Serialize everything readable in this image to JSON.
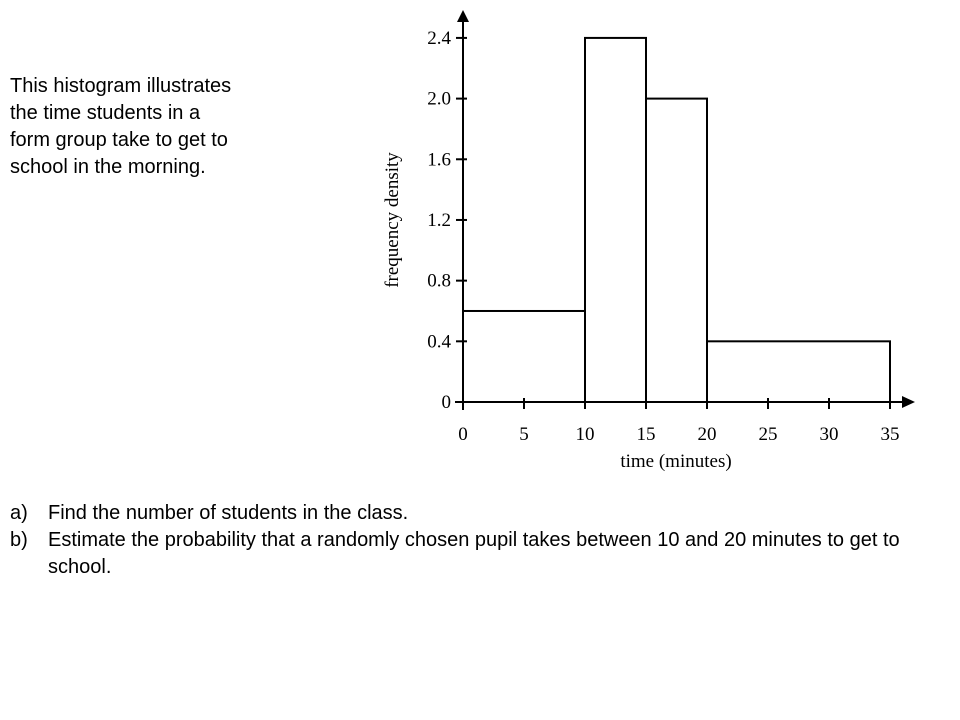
{
  "intro_lines": [
    "This histogram illustrates",
    "the time students in a",
    "form group take to get to",
    "school in the morning."
  ],
  "questions": [
    {
      "marker": "a)",
      "text": "Find the number of students in the class."
    },
    {
      "marker": "b)",
      "text": "Estimate the probability that a randomly chosen pupil takes between 10 and 20 minutes to get to school."
    }
  ],
  "chart_data": {
    "type": "bar",
    "histogram": true,
    "title": "",
    "xlabel": "time (minutes)",
    "ylabel": "frequency density",
    "xlim": [
      0,
      35
    ],
    "ylim": [
      0,
      2.4
    ],
    "x_ticks": [
      "0",
      "5",
      "10",
      "15",
      "20",
      "25",
      "30",
      "35"
    ],
    "x_tick_values": [
      0,
      5,
      10,
      15,
      20,
      25,
      30,
      35
    ],
    "y_ticks": [
      "0",
      "0.4",
      "0.8",
      "1.2",
      "1.6",
      "2.0",
      "2.4"
    ],
    "y_tick_values": [
      0,
      0.4,
      0.8,
      1.2,
      1.6,
      2.0,
      2.4
    ],
    "bins": [
      {
        "start": 0,
        "end": 10,
        "value": 0.6
      },
      {
        "start": 10,
        "end": 15,
        "value": 2.4
      },
      {
        "start": 15,
        "end": 20,
        "value": 2.0
      },
      {
        "start": 20,
        "end": 35,
        "value": 0.4
      }
    ],
    "grid": false,
    "colors": {
      "bar_fill": "#ffffff",
      "bar_stroke": "#000000",
      "axis": "#000000"
    }
  }
}
